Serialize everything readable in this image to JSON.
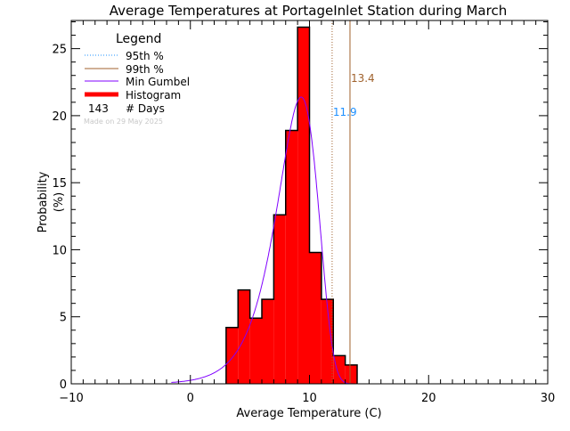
{
  "chart_data": {
    "type": "bar",
    "title": "Average Temperatures at PortageInlet Station during March",
    "xlabel": "Average Temperature (C)",
    "ylabel": "Probability\n(%)",
    "xlim": [
      -10,
      30
    ],
    "ylim": [
      0,
      27.1
    ],
    "x_ticks": [
      -10,
      0,
      10,
      20,
      30
    ],
    "y_ticks": [
      0,
      5,
      10,
      15,
      20,
      25
    ],
    "grid": false,
    "histogram": {
      "name": "Histogram",
      "color": "#ff0000",
      "bin_edges": [
        3,
        4,
        5,
        6,
        7,
        8,
        9,
        10,
        11,
        12,
        13,
        14
      ],
      "values": [
        4.2,
        7.0,
        4.9,
        6.3,
        12.6,
        18.9,
        26.6,
        9.8,
        6.3,
        2.1,
        1.4
      ]
    },
    "gumbel": {
      "name": "Min Gumbel",
      "color": "#8000ff",
      "mu": 9.3,
      "beta": 1.72
    },
    "percentiles": [
      {
        "name": "95th %",
        "value": 11.9,
        "label": "11.9",
        "line_color": "#a0622d",
        "label_color": "#1e90ff",
        "legend_color": "#1e90ff",
        "style": "dotted"
      },
      {
        "name": "99th %",
        "value": 13.4,
        "label": "13.4",
        "line_color": "#a0622d",
        "label_color": "#a0622d",
        "legend_color": "#a0622d",
        "style": "solid"
      }
    ],
    "legend": {
      "title": "Legend",
      "placement": "top-left",
      "days_count": "143",
      "days_label": "# Days"
    },
    "watermark": "Made on 29 May 2025"
  }
}
